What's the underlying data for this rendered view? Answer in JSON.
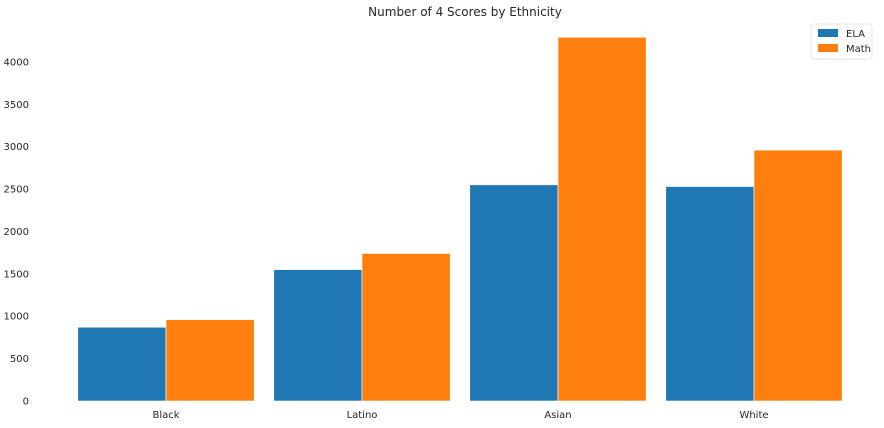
{
  "chart_data": {
    "type": "bar",
    "title": "Number of 4 Scores by Ethnicity",
    "xlabel": "",
    "ylabel": "",
    "categories": [
      "Black",
      "Latino",
      "Asian",
      "White"
    ],
    "series": [
      {
        "name": "ELA",
        "values": [
          870,
          1550,
          2550,
          2530
        ],
        "color": "#1f77b4"
      },
      {
        "name": "Math",
        "values": [
          960,
          1740,
          4290,
          2960
        ],
        "color": "#ff7f0e"
      }
    ],
    "ylim": [
      0,
      4400
    ],
    "yticks": [
      0,
      500,
      1000,
      1500,
      2000,
      2500,
      3000,
      3500,
      4000
    ],
    "grid": false,
    "legend": "top-right"
  }
}
